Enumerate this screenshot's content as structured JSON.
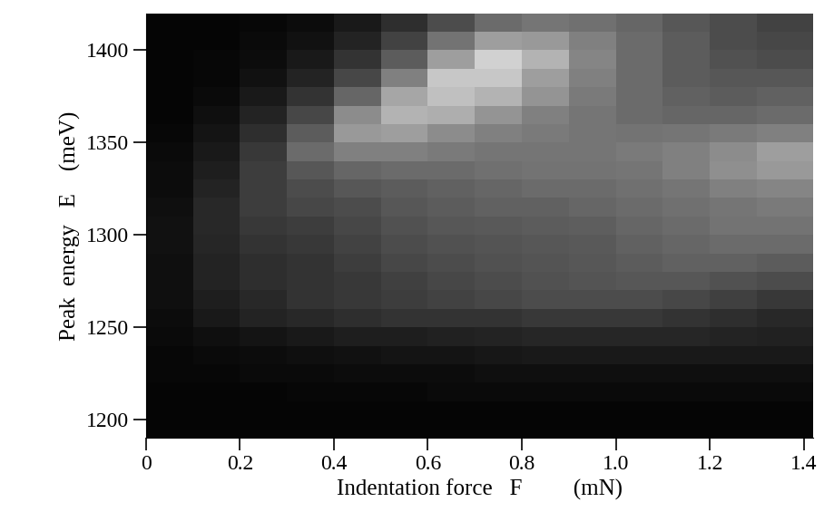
{
  "chart_data": {
    "type": "heatmap",
    "x_label": "Indentation force   F         (mN)",
    "y_label": "Peak  energy   E    (meV)",
    "xlim": [
      0,
      1.42
    ],
    "ylim": [
      1190,
      1420
    ],
    "xticks": [
      0,
      0.2,
      0.4,
      0.6,
      0.8,
      1.0,
      1.2,
      1.4
    ],
    "yticks": [
      1200,
      1250,
      1300,
      1350,
      1400
    ],
    "x_edges": [
      0,
      0.1,
      0.2,
      0.3,
      0.4,
      0.5,
      0.6,
      0.7,
      0.8,
      0.9,
      1.0,
      1.1,
      1.2,
      1.3,
      1.42
    ],
    "y_edges": [
      1190,
      1200,
      1210,
      1220,
      1230,
      1240,
      1250,
      1260,
      1270,
      1280,
      1290,
      1300,
      1310,
      1320,
      1330,
      1340,
      1350,
      1360,
      1370,
      1380,
      1390,
      1400,
      1410,
      1420
    ],
    "zlim": [
      0,
      1
    ],
    "cells": [
      [
        0.02,
        0.02,
        0.02,
        0.02,
        0.02,
        0.02,
        0.02,
        0.02,
        0.02,
        0.02,
        0.02,
        0.02,
        0.02,
        0.02
      ],
      [
        0.02,
        0.02,
        0.02,
        0.02,
        0.02,
        0.02,
        0.02,
        0.02,
        0.02,
        0.02,
        0.02,
        0.02,
        0.02,
        0.02
      ],
      [
        0.02,
        0.02,
        0.02,
        0.03,
        0.03,
        0.03,
        0.04,
        0.04,
        0.04,
        0.04,
        0.04,
        0.04,
        0.04,
        0.04
      ],
      [
        0.03,
        0.03,
        0.04,
        0.04,
        0.05,
        0.05,
        0.05,
        0.06,
        0.06,
        0.06,
        0.06,
        0.06,
        0.06,
        0.06
      ],
      [
        0.03,
        0.04,
        0.05,
        0.06,
        0.07,
        0.08,
        0.08,
        0.09,
        0.1,
        0.1,
        0.1,
        0.1,
        0.1,
        0.1
      ],
      [
        0.04,
        0.06,
        0.08,
        0.1,
        0.12,
        0.12,
        0.13,
        0.14,
        0.15,
        0.15,
        0.15,
        0.15,
        0.14,
        0.13
      ],
      [
        0.05,
        0.1,
        0.14,
        0.16,
        0.18,
        0.2,
        0.2,
        0.2,
        0.22,
        0.22,
        0.22,
        0.2,
        0.18,
        0.16
      ],
      [
        0.06,
        0.12,
        0.16,
        0.2,
        0.22,
        0.24,
        0.26,
        0.28,
        0.3,
        0.3,
        0.3,
        0.28,
        0.25,
        0.22
      ],
      [
        0.06,
        0.14,
        0.18,
        0.2,
        0.22,
        0.25,
        0.28,
        0.3,
        0.32,
        0.33,
        0.34,
        0.34,
        0.32,
        0.3
      ],
      [
        0.06,
        0.14,
        0.18,
        0.2,
        0.24,
        0.28,
        0.3,
        0.32,
        0.33,
        0.34,
        0.36,
        0.38,
        0.38,
        0.36
      ],
      [
        0.07,
        0.15,
        0.2,
        0.22,
        0.26,
        0.3,
        0.32,
        0.33,
        0.34,
        0.35,
        0.38,
        0.4,
        0.42,
        0.42
      ],
      [
        0.07,
        0.16,
        0.22,
        0.24,
        0.28,
        0.32,
        0.34,
        0.35,
        0.36,
        0.37,
        0.4,
        0.42,
        0.45,
        0.45
      ],
      [
        0.06,
        0.16,
        0.24,
        0.28,
        0.3,
        0.34,
        0.36,
        0.38,
        0.38,
        0.4,
        0.42,
        0.44,
        0.46,
        0.48
      ],
      [
        0.05,
        0.14,
        0.24,
        0.3,
        0.34,
        0.36,
        0.38,
        0.4,
        0.42,
        0.42,
        0.44,
        0.46,
        0.5,
        0.52
      ],
      [
        0.05,
        0.12,
        0.24,
        0.34,
        0.4,
        0.42,
        0.42,
        0.44,
        0.45,
        0.45,
        0.46,
        0.5,
        0.56,
        0.6
      ],
      [
        0.04,
        0.1,
        0.22,
        0.42,
        0.5,
        0.5,
        0.48,
        0.46,
        0.46,
        0.46,
        0.48,
        0.5,
        0.55,
        0.62
      ],
      [
        0.03,
        0.08,
        0.18,
        0.36,
        0.6,
        0.62,
        0.55,
        0.5,
        0.48,
        0.46,
        0.45,
        0.46,
        0.48,
        0.5
      ],
      [
        0.02,
        0.06,
        0.14,
        0.28,
        0.55,
        0.7,
        0.68,
        0.58,
        0.5,
        0.46,
        0.42,
        0.4,
        0.4,
        0.42
      ],
      [
        0.02,
        0.04,
        0.1,
        0.2,
        0.4,
        0.65,
        0.75,
        0.7,
        0.58,
        0.48,
        0.42,
        0.38,
        0.36,
        0.38
      ],
      [
        0.02,
        0.03,
        0.07,
        0.14,
        0.28,
        0.5,
        0.78,
        0.78,
        0.62,
        0.5,
        0.42,
        0.36,
        0.34,
        0.34
      ],
      [
        0.02,
        0.03,
        0.05,
        0.1,
        0.2,
        0.36,
        0.62,
        0.82,
        0.7,
        0.52,
        0.42,
        0.36,
        0.32,
        0.3
      ],
      [
        0.02,
        0.02,
        0.04,
        0.07,
        0.14,
        0.26,
        0.45,
        0.62,
        0.6,
        0.5,
        0.42,
        0.36,
        0.3,
        0.28
      ],
      [
        0.02,
        0.02,
        0.03,
        0.05,
        0.1,
        0.18,
        0.3,
        0.42,
        0.46,
        0.44,
        0.4,
        0.34,
        0.3,
        0.26
      ]
    ]
  }
}
